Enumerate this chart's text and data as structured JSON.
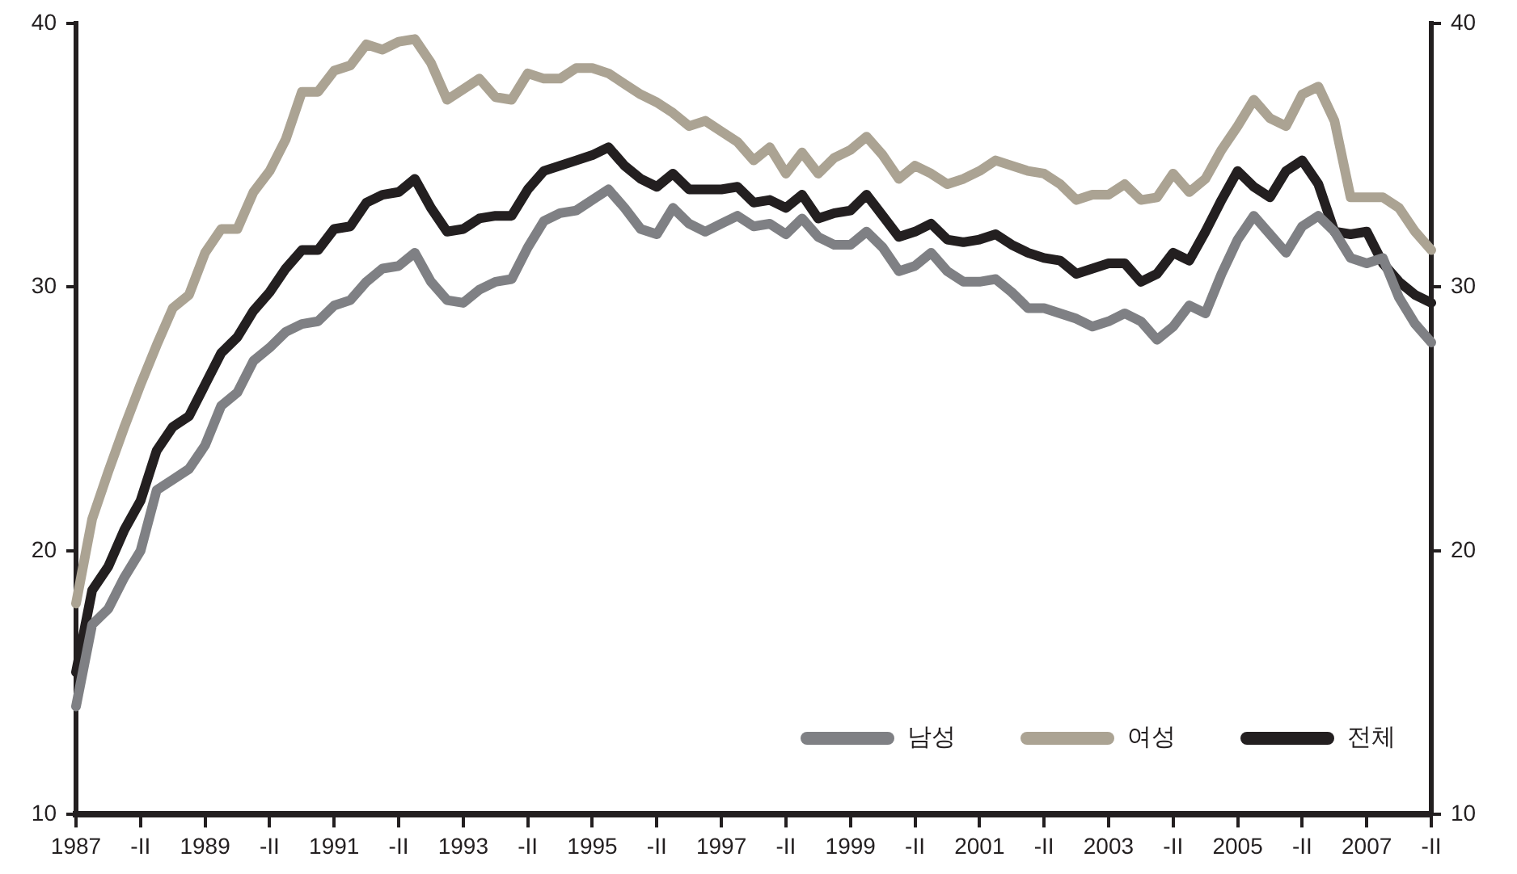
{
  "chart_data": {
    "type": "line",
    "categories": [
      "1987",
      null,
      null,
      null,
      "-II",
      null,
      null,
      null,
      "1989",
      null,
      null,
      null,
      "-II",
      null,
      null,
      null,
      "1991",
      null,
      null,
      null,
      "-II",
      null,
      null,
      null,
      "1993",
      null,
      null,
      null,
      "-II",
      null,
      null,
      null,
      "1995",
      null,
      null,
      null,
      "-II",
      null,
      null,
      null,
      "1997",
      null,
      null,
      null,
      "-II",
      null,
      null,
      null,
      "1999",
      null,
      null,
      null,
      "-II",
      null,
      null,
      null,
      "2001",
      null,
      null,
      null,
      "-II",
      null,
      null,
      null,
      "2003",
      null,
      null,
      null,
      "-II",
      null,
      null,
      null,
      "2005",
      null,
      null,
      null,
      "-II",
      null,
      null,
      null,
      "2007",
      null,
      null,
      null,
      "-II"
    ],
    "series": [
      {
        "name": "남성",
        "color": "#7f8084",
        "values": [
          14.1,
          17.2,
          17.8,
          19.0,
          20.0,
          22.3,
          22.7,
          23.1,
          24.0,
          25.5,
          26.0,
          27.2,
          27.7,
          28.3,
          28.6,
          28.7,
          29.3,
          29.5,
          30.2,
          30.7,
          30.8,
          31.3,
          30.2,
          29.5,
          29.4,
          29.9,
          30.2,
          30.3,
          31.5,
          32.5,
          32.8,
          32.9,
          33.3,
          33.7,
          33.0,
          32.2,
          32.0,
          33.0,
          32.4,
          32.1,
          32.4,
          32.7,
          32.3,
          32.4,
          32.0,
          32.6,
          31.9,
          31.6,
          31.6,
          32.1,
          31.5,
          30.6,
          30.8,
          31.3,
          30.6,
          30.2,
          30.2,
          30.3,
          29.8,
          29.2,
          29.2,
          29.0,
          28.8,
          28.5,
          28.7,
          29.0,
          28.7,
          28.0,
          28.5,
          29.3,
          29.0,
          30.5,
          31.8,
          32.7,
          32.0,
          31.3,
          32.3,
          32.7,
          32.1,
          31.1,
          30.9,
          31.1,
          29.6,
          28.6,
          27.9
        ]
      },
      {
        "name": "여성",
        "color": "#aba393",
        "values": [
          18.0,
          21.2,
          23.0,
          24.7,
          26.3,
          27.8,
          29.2,
          29.7,
          31.3,
          32.2,
          32.2,
          33.6,
          34.4,
          35.6,
          37.4,
          37.4,
          38.2,
          38.4,
          39.2,
          39.0,
          39.3,
          39.4,
          38.5,
          37.1,
          37.5,
          37.9,
          37.2,
          37.1,
          38.1,
          37.9,
          37.9,
          38.3,
          38.3,
          38.1,
          37.7,
          37.3,
          37.0,
          36.6,
          36.1,
          36.3,
          35.9,
          35.5,
          34.8,
          35.3,
          34.3,
          35.1,
          34.3,
          34.9,
          35.2,
          35.7,
          35.0,
          34.1,
          34.6,
          34.3,
          33.9,
          34.1,
          34.4,
          34.8,
          34.6,
          34.4,
          34.3,
          33.9,
          33.3,
          33.5,
          33.5,
          33.9,
          33.3,
          33.4,
          34.3,
          33.6,
          34.1,
          35.2,
          36.1,
          37.1,
          36.4,
          36.1,
          37.3,
          37.6,
          36.3,
          33.4,
          33.4,
          33.4,
          33.0,
          32.1,
          31.4
        ]
      },
      {
        "name": "전체",
        "color": "#231f20",
        "values": [
          15.4,
          18.5,
          19.4,
          20.8,
          21.9,
          23.8,
          24.7,
          25.1,
          26.3,
          27.5,
          28.1,
          29.1,
          29.8,
          30.7,
          31.4,
          31.4,
          32.2,
          32.3,
          33.2,
          33.5,
          33.6,
          34.1,
          33.0,
          32.1,
          32.2,
          32.6,
          32.7,
          32.7,
          33.7,
          34.4,
          34.6,
          34.8,
          35.0,
          35.3,
          34.6,
          34.1,
          33.8,
          34.3,
          33.7,
          33.7,
          33.7,
          33.8,
          33.2,
          33.3,
          33.0,
          33.5,
          32.6,
          32.8,
          32.9,
          33.5,
          32.7,
          31.9,
          32.1,
          32.4,
          31.8,
          31.7,
          31.8,
          32.0,
          31.6,
          31.3,
          31.1,
          31.0,
          30.5,
          30.7,
          30.9,
          30.9,
          30.2,
          30.5,
          31.3,
          31.0,
          32.1,
          33.3,
          34.4,
          33.8,
          33.4,
          34.4,
          34.8,
          33.9,
          32.1,
          32.0,
          32.1,
          30.9,
          30.2,
          29.7,
          29.4
        ]
      }
    ],
    "ylim": [
      10,
      40
    ],
    "yticks": [
      10,
      20,
      30,
      40
    ],
    "y2lim": [
      10,
      40
    ],
    "y2ticks": [
      10,
      20,
      30,
      40
    ],
    "grid": false,
    "legend": "bottom right",
    "marker": "none",
    "line_style": "solid"
  }
}
